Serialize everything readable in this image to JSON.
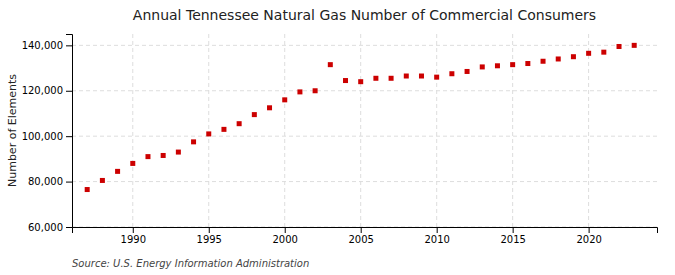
{
  "chart_data": {
    "type": "scatter",
    "title": "Annual Tennessee Natural Gas Number of Commercial Consumers",
    "y_label": "Number of Elements",
    "source": "Source: U.S. Energy Information Administration",
    "x": [
      1987,
      1988,
      1989,
      1990,
      1991,
      1992,
      1993,
      1994,
      1995,
      1996,
      1997,
      1998,
      1999,
      2000,
      2001,
      2002,
      2003,
      2004,
      2005,
      2006,
      2007,
      2008,
      2009,
      2010,
      2011,
      2012,
      2013,
      2014,
      2015,
      2016,
      2017,
      2018,
      2019,
      2020,
      2021,
      2022,
      2023
    ],
    "values": [
      76500,
      80500,
      84500,
      88000,
      91000,
      91500,
      93000,
      97500,
      101000,
      103000,
      105500,
      109500,
      112500,
      116000,
      119500,
      120000,
      131500,
      124500,
      124000,
      125500,
      125500,
      126500,
      126500,
      126000,
      127500,
      128500,
      130500,
      131000,
      131500,
      132000,
      133000,
      134000,
      135000,
      136500,
      137000,
      139500,
      140000
    ],
    "color": "#cc0000",
    "marker": "square",
    "xlim": [
      1986,
      2024.5
    ],
    "ylim": [
      60000,
      145000
    ],
    "xticks": [
      1990,
      1995,
      2000,
      2005,
      2010,
      2015,
      2020
    ],
    "yticks": [
      {
        "value": 60000,
        "label": "60,000"
      },
      {
        "value": 80000,
        "label": "80,000"
      },
      {
        "value": 100000,
        "label": "100,000"
      },
      {
        "value": 120000,
        "label": "120,000"
      },
      {
        "value": 140000,
        "label": "140,000"
      }
    ],
    "grid": true
  }
}
